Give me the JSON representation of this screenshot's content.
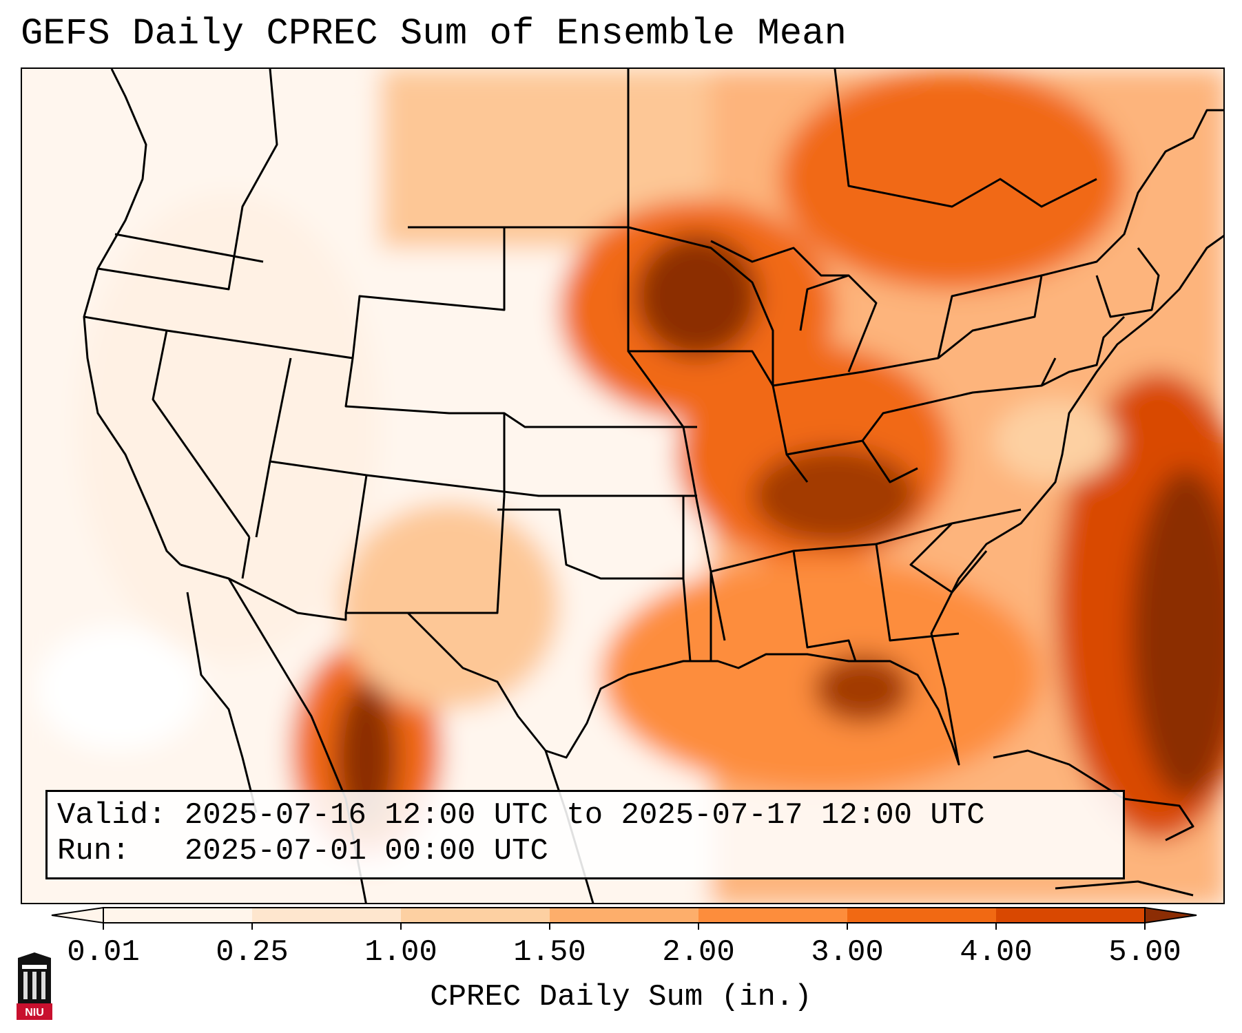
{
  "title": "GEFS Daily CPREC Sum of Ensemble Mean",
  "info": {
    "valid_line": "Valid: 2025-07-16 12:00 UTC to 2025-07-17 12:00 UTC",
    "run_line": "Run:   2025-07-01 00:00 UTC"
  },
  "colorbar": {
    "label": "CPREC Daily Sum (in.)",
    "ticks": [
      "0.01",
      "0.25",
      "1.00",
      "1.50",
      "2.00",
      "3.00",
      "4.00",
      "5.00"
    ],
    "colors": [
      "#fff5eb",
      "#fee6ce",
      "#fdd0a2",
      "#fdae6b",
      "#fd8d3c",
      "#f16913",
      "#d94801",
      "#8c2d04"
    ],
    "extend": "both"
  },
  "logo": {
    "text": "NIU"
  }
}
